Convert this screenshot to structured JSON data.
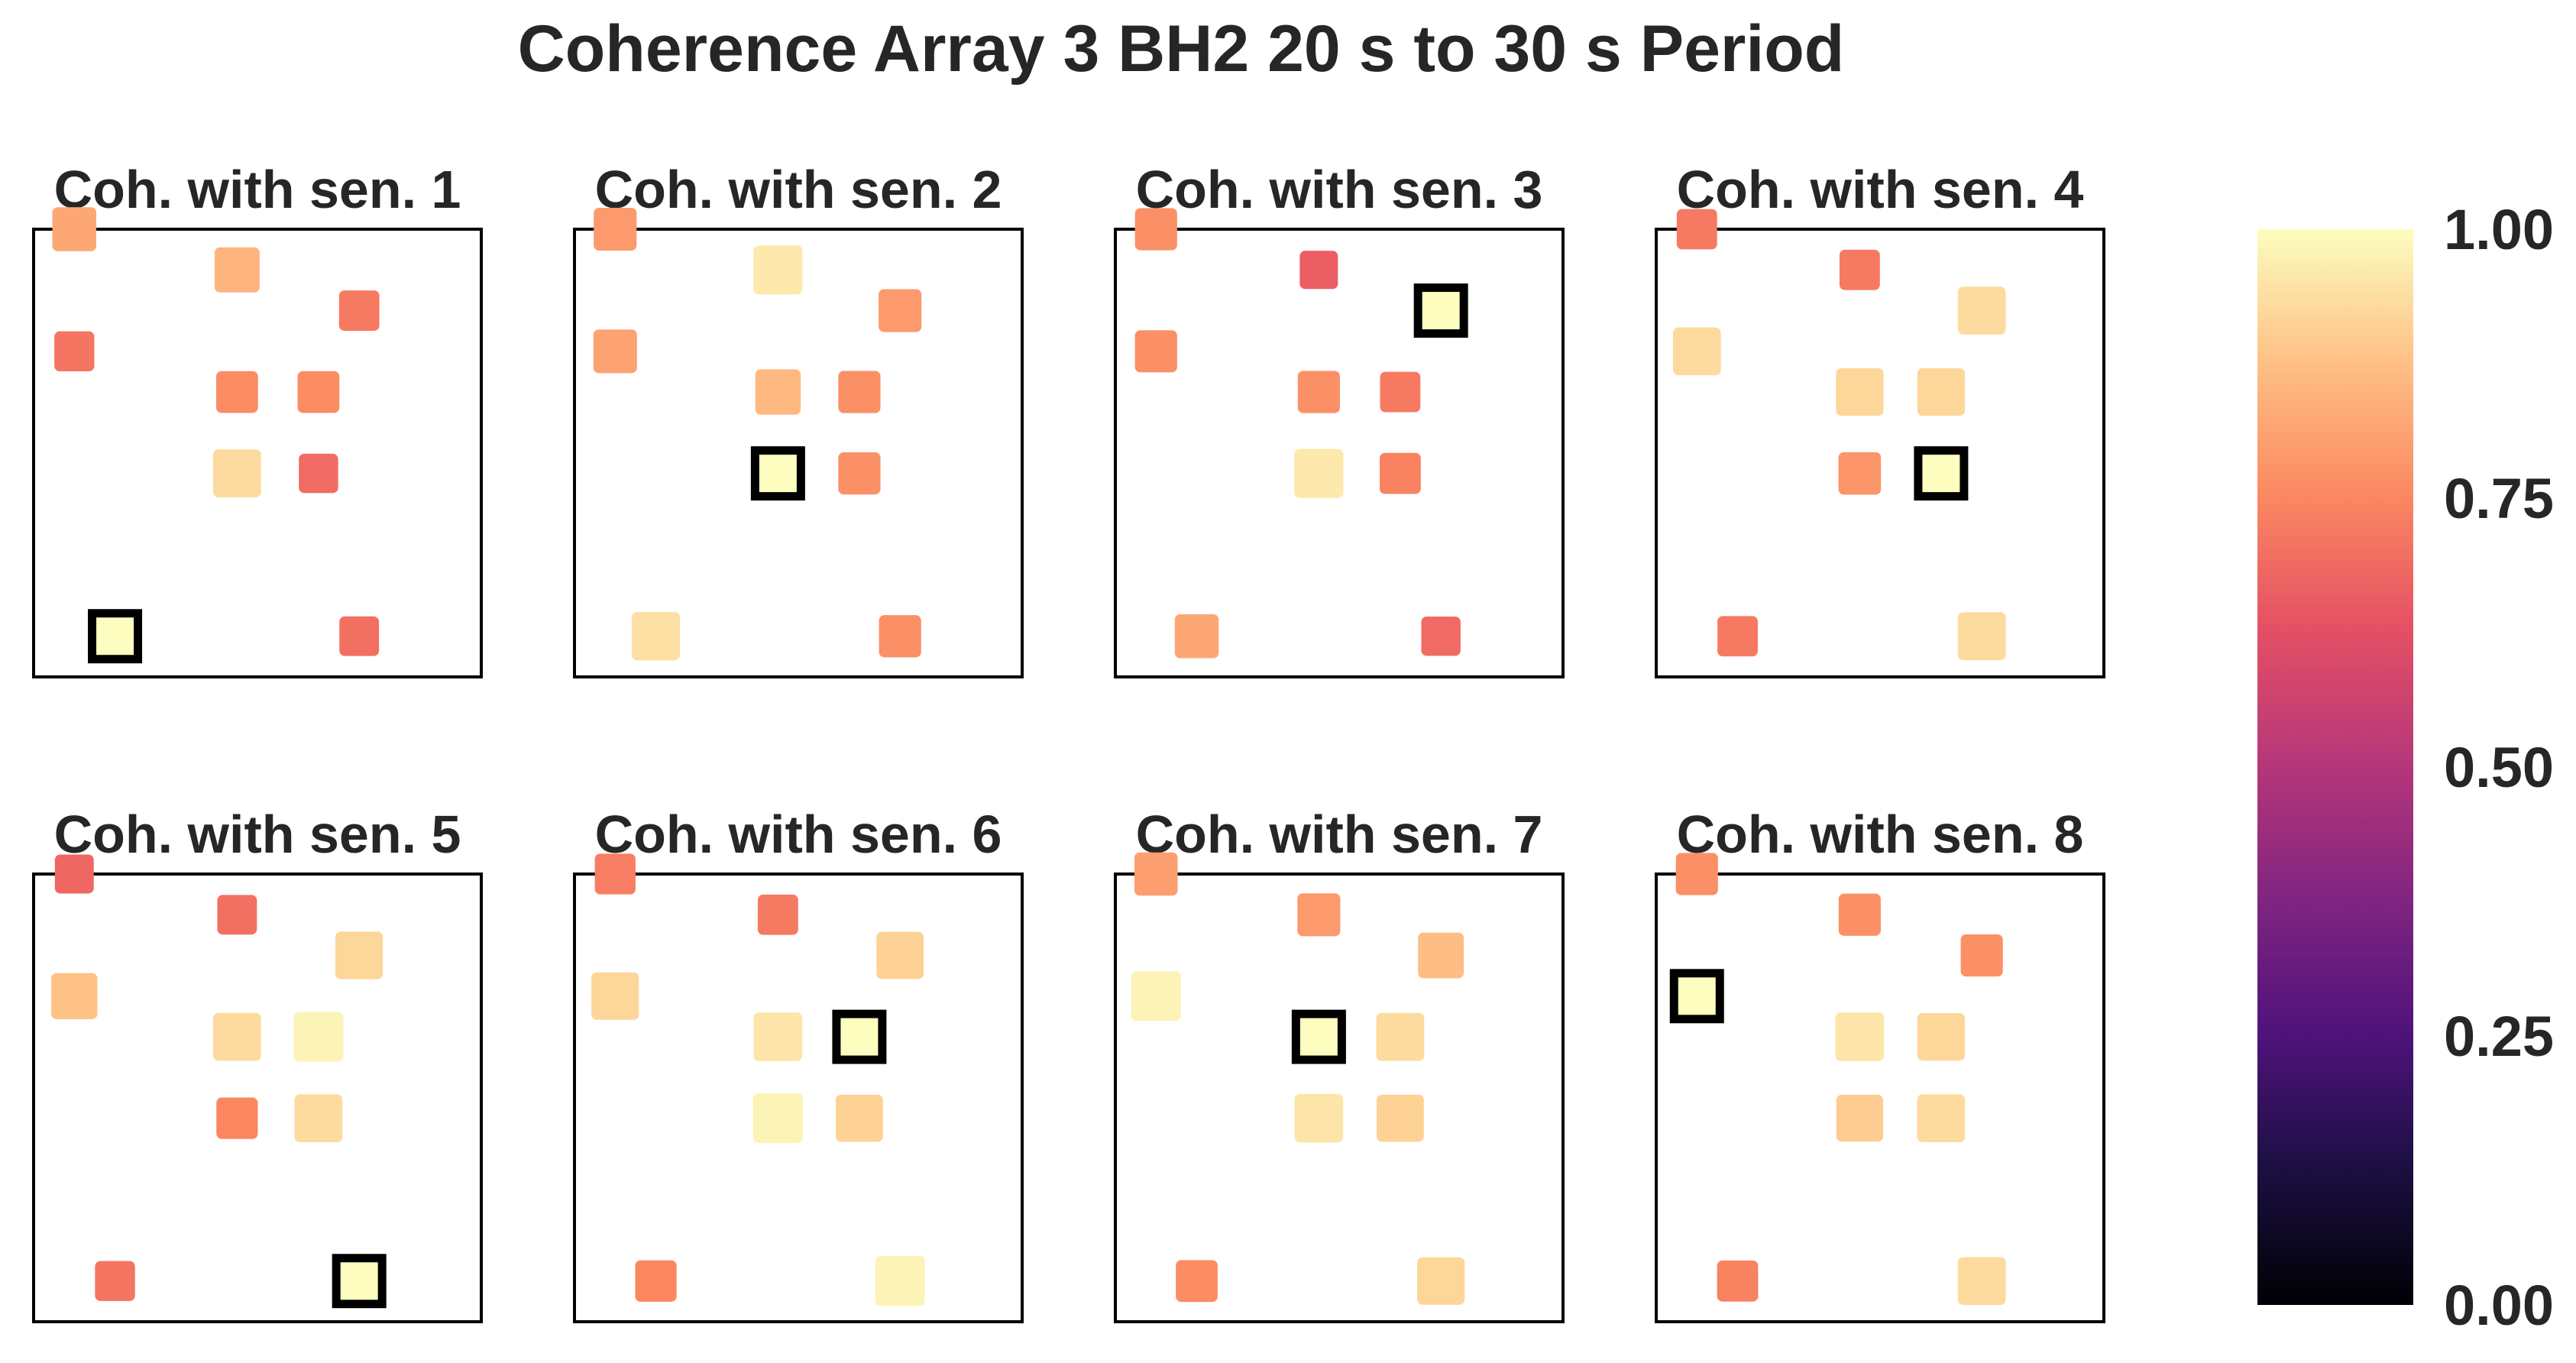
{
  "chart_data": {
    "type": "heatmap",
    "title": "Coherence Array 3 BH2 20 s to 30 s Period",
    "colormap": "magma",
    "colorbar": {
      "vmin": 0.0,
      "vmax": 1.0,
      "ticks": [
        "0.00",
        "0.25",
        "0.50",
        "0.75",
        "1.00"
      ]
    },
    "sensor_layout": [
      {
        "sensor": 1,
        "x": 1.5,
        "y": 1.0
      },
      {
        "sensor": 2,
        "x": 3.0,
        "y": 3.0
      },
      {
        "sensor": 3,
        "x": 4.5,
        "y": 5.0
      },
      {
        "sensor": 4,
        "x": 4.0,
        "y": 3.0
      },
      {
        "sensor": 5,
        "x": 4.5,
        "y": 1.0
      },
      {
        "sensor": 6,
        "x": 4.0,
        "y": 4.0
      },
      {
        "sensor": 7,
        "x": 3.0,
        "y": 4.0
      },
      {
        "sensor": 8,
        "x": 1.0,
        "y": 4.5
      },
      {
        "sensor": 9,
        "x": 3.0,
        "y": 5.5
      },
      {
        "sensor": 10,
        "x": 1.0,
        "y": 6.0
      }
    ],
    "panels": [
      {
        "title": "Coh. with sen. 1",
        "reference_sensor": 1,
        "values": [
          1.0,
          0.93,
          0.72,
          0.69,
          0.7,
          0.76,
          0.76,
          0.71,
          0.85,
          0.82
        ]
      },
      {
        "title": "Coh. with sen. 2",
        "reference_sensor": 2,
        "values": [
          0.94,
          1.0,
          0.79,
          0.77,
          0.77,
          0.77,
          0.86,
          0.81,
          0.96,
          0.79
        ]
      },
      {
        "title": "Coh. with sen. 3",
        "reference_sensor": 3,
        "values": [
          0.82,
          0.96,
          1.0,
          0.74,
          0.69,
          0.72,
          0.77,
          0.77,
          0.66,
          0.77
        ]
      },
      {
        "title": "Coh. with sen. 4",
        "reference_sensor": 4,
        "values": [
          0.72,
          0.78,
          0.93,
          1.0,
          0.93,
          0.92,
          0.92,
          0.93,
          0.72,
          0.72
        ]
      },
      {
        "title": "Coh. with sen. 5",
        "reference_sensor": 5,
        "values": [
          0.71,
          0.75,
          0.92,
          0.93,
          1.0,
          0.98,
          0.93,
          0.88,
          0.7,
          0.68
        ]
      },
      {
        "title": "Coh. with sen. 6",
        "reference_sensor": 6,
        "values": [
          0.75,
          0.98,
          0.91,
          0.91,
          0.98,
          1.0,
          0.95,
          0.92,
          0.72,
          0.73
        ]
      },
      {
        "title": "Coh. with sen. 7",
        "reference_sensor": 7,
        "values": [
          0.76,
          0.95,
          0.87,
          0.91,
          0.92,
          0.93,
          1.0,
          0.98,
          0.79,
          0.8
        ]
      },
      {
        "title": "Coh. with sen. 8",
        "reference_sensor": 8,
        "values": [
          0.74,
          0.9,
          0.77,
          0.93,
          0.93,
          0.92,
          0.95,
          1.0,
          0.77,
          0.77
        ]
      }
    ]
  }
}
